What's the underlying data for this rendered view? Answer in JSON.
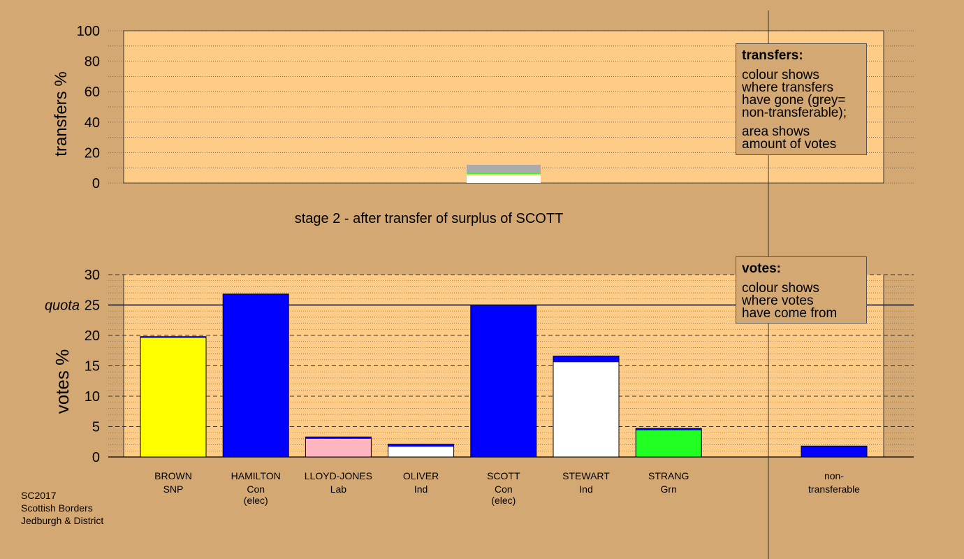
{
  "chart_data": [
    {
      "type": "bar",
      "stacked": true,
      "ylabel": "transfers %",
      "ylim": [
        0,
        100
      ],
      "yticks": [
        0,
        20,
        40,
        60,
        80,
        100
      ],
      "grid": true,
      "title": "stage 2 - after transfer of surplus of SCOTT",
      "categories": [
        "SCOTT"
      ],
      "series": [
        {
          "color": "#ffffff",
          "values": [
            5
          ]
        },
        {
          "color": "#ffcc88",
          "values": [
            1
          ]
        },
        {
          "color": "#22ff22",
          "values": [
            0.8
          ]
        },
        {
          "color": "#aaaaaa",
          "values": [
            5.2
          ]
        }
      ]
    },
    {
      "type": "bar",
      "stacked": true,
      "ylabel": "votes %",
      "ylim": [
        0,
        30
      ],
      "yticks": [
        0,
        5,
        10,
        15,
        20,
        25,
        30
      ],
      "grid": true,
      "quota": 25,
      "quota_label": "quota",
      "categories": [
        {
          "name": "BROWN",
          "party": "SNP",
          "status": ""
        },
        {
          "name": "HAMILTON",
          "party": "Con",
          "status": "(elec)"
        },
        {
          "name": "LLOYD-JONES",
          "party": "Lab",
          "status": ""
        },
        {
          "name": "OLIVER",
          "party": "Ind",
          "status": ""
        },
        {
          "name": "SCOTT",
          "party": "Con",
          "status": "(elec)"
        },
        {
          "name": "STEWART",
          "party": "Ind",
          "status": ""
        },
        {
          "name": "STRANG",
          "party": "Grn",
          "status": ""
        }
      ],
      "bars": [
        {
          "segments": [
            {
              "value": 19.6,
              "color": "#ffff00"
            },
            {
              "value": 0.2,
              "color": "#0000ff"
            }
          ]
        },
        {
          "segments": [
            {
              "value": 26.8,
              "color": "#0000ff"
            }
          ]
        },
        {
          "segments": [
            {
              "value": 3.0,
              "color": "#ffb6c1"
            },
            {
              "value": 0.3,
              "color": "#0000ff"
            }
          ]
        },
        {
          "segments": [
            {
              "value": 1.7,
              "color": "#ffffff"
            },
            {
              "value": 0.4,
              "color": "#0000ff"
            }
          ]
        },
        {
          "segments": [
            {
              "value": 25.0,
              "color": "#0000ff"
            }
          ]
        },
        {
          "segments": [
            {
              "value": 15.6,
              "color": "#ffffff"
            },
            {
              "value": 1.0,
              "color": "#0000ff"
            }
          ]
        },
        {
          "segments": [
            {
              "value": 4.4,
              "color": "#22ff22"
            },
            {
              "value": 0.3,
              "color": "#0000ff"
            }
          ]
        }
      ],
      "nontransferable": {
        "label_line1": "non-",
        "label_line2": "transferable",
        "value": 1.8,
        "color": "#0000ff"
      }
    }
  ],
  "legend_transfers": {
    "title": "transfers:",
    "lines1": [
      "colour shows",
      "where transfers",
      "have gone (grey=",
      "non-transferable);"
    ],
    "lines2": [
      "area shows",
      "amount of votes"
    ]
  },
  "legend_votes": {
    "title": "votes:",
    "lines1": [
      "colour shows",
      "where votes",
      "have come from"
    ]
  },
  "footer": [
    "SC2017",
    "Scottish Borders",
    "Jedburgh & District"
  ],
  "colors": {
    "background": "#d4a872",
    "plot_bg": "#ffcc88"
  }
}
